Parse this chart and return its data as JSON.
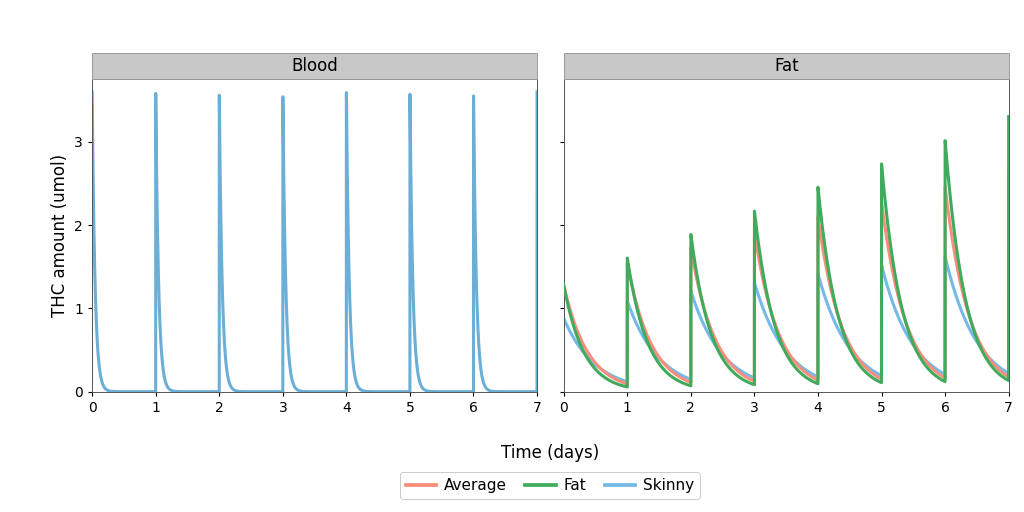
{
  "panel_titles": [
    "Blood",
    "Fat"
  ],
  "xlabel": "Time (days)",
  "ylabel": "THC amount (umol)",
  "xlim": [
    0,
    7
  ],
  "ylim_blood": [
    0,
    3.75
  ],
  "ylim_fat": [
    0,
    3.75
  ],
  "xticks": [
    0,
    1,
    2,
    3,
    4,
    5,
    6,
    7
  ],
  "yticks": [
    0,
    1,
    2,
    3
  ],
  "colors": {
    "blood": "#6BAED6",
    "average": "#FC8D7A",
    "fat": "#41AB5D",
    "skinny": "#74B9E8"
  },
  "legend_labels": [
    "Average",
    "Fat",
    "Skinny"
  ],
  "panel_bg": "#FFFFFF",
  "strip_bg": "#C8C8C8",
  "fig_bg": "#FFFFFF",
  "linewidth": 2.2,
  "n_doses": 7,
  "dose_interval": 1.0,
  "blood_peak": 3.6,
  "blood_decay": 0.045,
  "fat_params": {
    "average": {
      "base": 1.28,
      "slope": 0.17,
      "decay": 0.38,
      "min_baseline": 0.0
    },
    "fat": {
      "base": 1.28,
      "slope": 0.27,
      "decay": 0.32,
      "min_baseline": 0.0
    },
    "skinny": {
      "base": 0.88,
      "slope": 0.09,
      "decay": 0.5,
      "min_baseline": 0.0
    }
  }
}
